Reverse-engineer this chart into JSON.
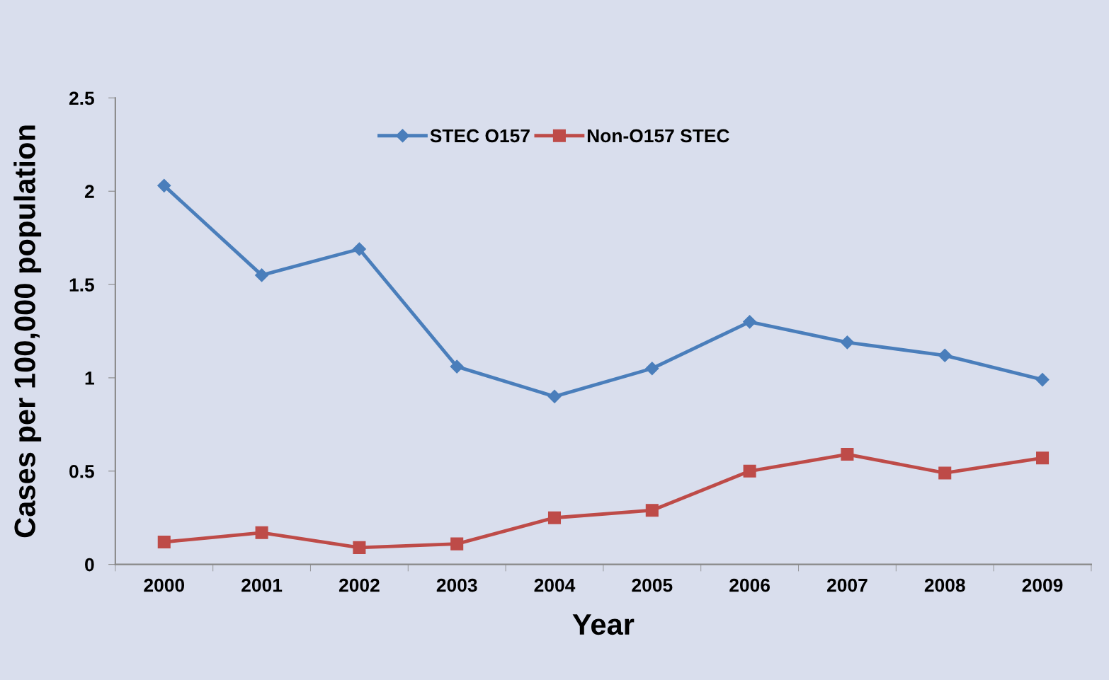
{
  "chart_data": {
    "type": "line",
    "xlabel": "Year",
    "ylabel": "Cases per 100,000 population",
    "categories": [
      "2000",
      "2001",
      "2002",
      "2003",
      "2004",
      "2005",
      "2006",
      "2007",
      "2008",
      "2009"
    ],
    "series": [
      {
        "name": "STEC O157",
        "color": "#4a7ebb",
        "marker": "diamond",
        "values": [
          2.03,
          1.55,
          1.69,
          1.06,
          0.9,
          1.05,
          1.3,
          1.19,
          1.12,
          0.99
        ]
      },
      {
        "name": "Non-O157 STEC",
        "color": "#be4b48",
        "marker": "square",
        "values": [
          0.12,
          0.17,
          0.09,
          0.11,
          0.25,
          0.29,
          0.5,
          0.59,
          0.49,
          0.57
        ]
      }
    ],
    "ylim": [
      0,
      2.5
    ],
    "yticks": [
      0,
      0.5,
      1,
      1.5,
      2,
      2.5
    ],
    "grid": false,
    "legend": "top",
    "line_style": "solid"
  }
}
